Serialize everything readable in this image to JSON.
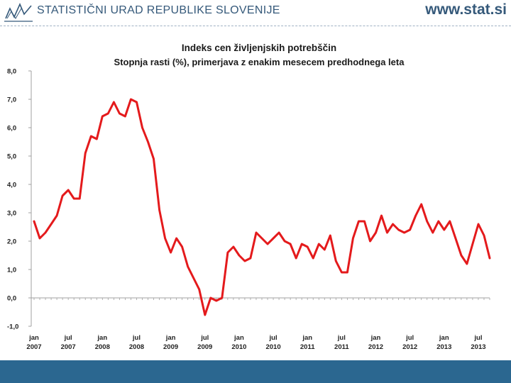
{
  "header": {
    "organization": "STATISTIČNI URAD REPUBLIKE SLOVENIJE",
    "website": "www.stat.si",
    "logo": "stat-logo-icon"
  },
  "colors": {
    "brand": "#35597a",
    "series": "#e41a1c",
    "footer": "#2b6790"
  },
  "chart_data": {
    "type": "line",
    "title": "Indeks cen življenjskih potrebščin",
    "subtitle": "Stopnja rasti (%), primerjava z enakim mesecem predhodnega leta",
    "xlabel": "",
    "ylabel": "",
    "ylim": [
      -1,
      8
    ],
    "yticks": [
      "8,0",
      "7,0",
      "6,0",
      "5,0",
      "4,0",
      "3,0",
      "2,0",
      "1,0",
      "0,0",
      "-1,0"
    ],
    "ytick_values": [
      8,
      7,
      6,
      5,
      4,
      3,
      2,
      1,
      0,
      -1
    ],
    "xticks": [
      {
        "month": "jan",
        "year": "2007",
        "index": 0
      },
      {
        "month": "jul",
        "year": "2007",
        "index": 6
      },
      {
        "month": "jan",
        "year": "2008",
        "index": 12
      },
      {
        "month": "jul",
        "year": "2008",
        "index": 18
      },
      {
        "month": "jan",
        "year": "2009",
        "index": 24
      },
      {
        "month": "jul",
        "year": "2009",
        "index": 30
      },
      {
        "month": "jan",
        "year": "2010",
        "index": 36
      },
      {
        "month": "jul",
        "year": "2010",
        "index": 42
      },
      {
        "month": "jan",
        "year": "2011",
        "index": 48
      },
      {
        "month": "jul",
        "year": "2011",
        "index": 54
      },
      {
        "month": "jan",
        "year": "2012",
        "index": 60
      },
      {
        "month": "jul",
        "year": "2012",
        "index": 66
      },
      {
        "month": "jan",
        "year": "2013",
        "index": 72
      },
      {
        "month": "jul",
        "year": "2013",
        "index": 78
      }
    ],
    "period": "jan 2007 – sep 2013 (monthly)",
    "grid": false,
    "series": [
      {
        "name": "Stopnja rasti (%)",
        "values": [
          2.7,
          2.1,
          2.3,
          2.6,
          2.9,
          3.6,
          3.8,
          3.5,
          3.5,
          5.1,
          5.7,
          5.6,
          6.4,
          6.5,
          6.9,
          6.5,
          6.4,
          7.0,
          6.9,
          6.0,
          5.5,
          4.9,
          3.1,
          2.1,
          1.6,
          2.1,
          1.8,
          1.1,
          0.7,
          0.3,
          -0.6,
          0.0,
          -0.1,
          0.0,
          1.6,
          1.8,
          1.5,
          1.3,
          1.4,
          2.3,
          2.1,
          1.9,
          2.1,
          2.3,
          2.0,
          1.9,
          1.4,
          1.9,
          1.8,
          1.4,
          1.9,
          1.7,
          2.2,
          1.3,
          0.9,
          0.9,
          2.1,
          2.7,
          2.7,
          2.0,
          2.3,
          2.9,
          2.3,
          2.6,
          2.4,
          2.3,
          2.4,
          2.9,
          3.3,
          2.7,
          2.3,
          2.7,
          2.4,
          2.7,
          2.1,
          1.5,
          1.2,
          1.9,
          2.6,
          2.2,
          1.4
        ]
      }
    ]
  }
}
